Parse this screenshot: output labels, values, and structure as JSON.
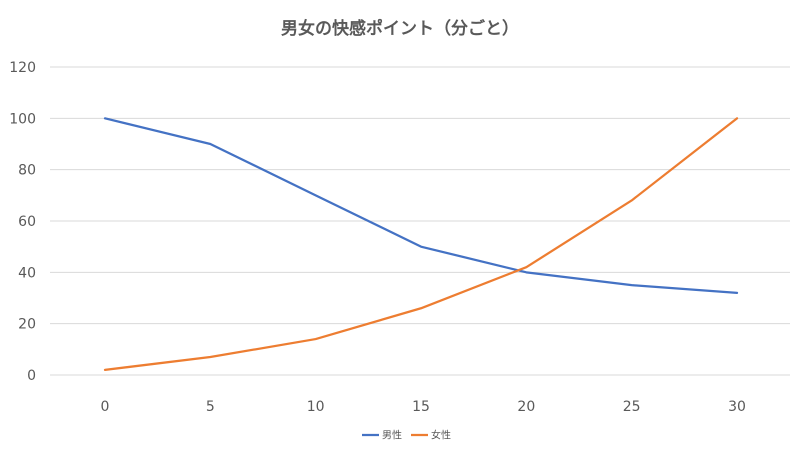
{
  "chart_data": {
    "type": "line",
    "title": "男女の快感ポイント（分ごと）",
    "x": [
      0,
      5,
      10,
      15,
      20,
      25,
      30
    ],
    "xlabel": "",
    "ylabel": "",
    "ylim": [
      0,
      120
    ],
    "yticks": [
      0,
      20,
      40,
      60,
      80,
      100,
      120
    ],
    "grid": true,
    "legend_position": "bottom",
    "series": [
      {
        "name": "男性",
        "color": "#4472C4",
        "values": [
          100,
          90,
          70,
          50,
          40,
          35,
          32
        ]
      },
      {
        "name": "女性",
        "color": "#ED7D31",
        "values": [
          2,
          7,
          14,
          26,
          42,
          68,
          100
        ]
      }
    ]
  }
}
